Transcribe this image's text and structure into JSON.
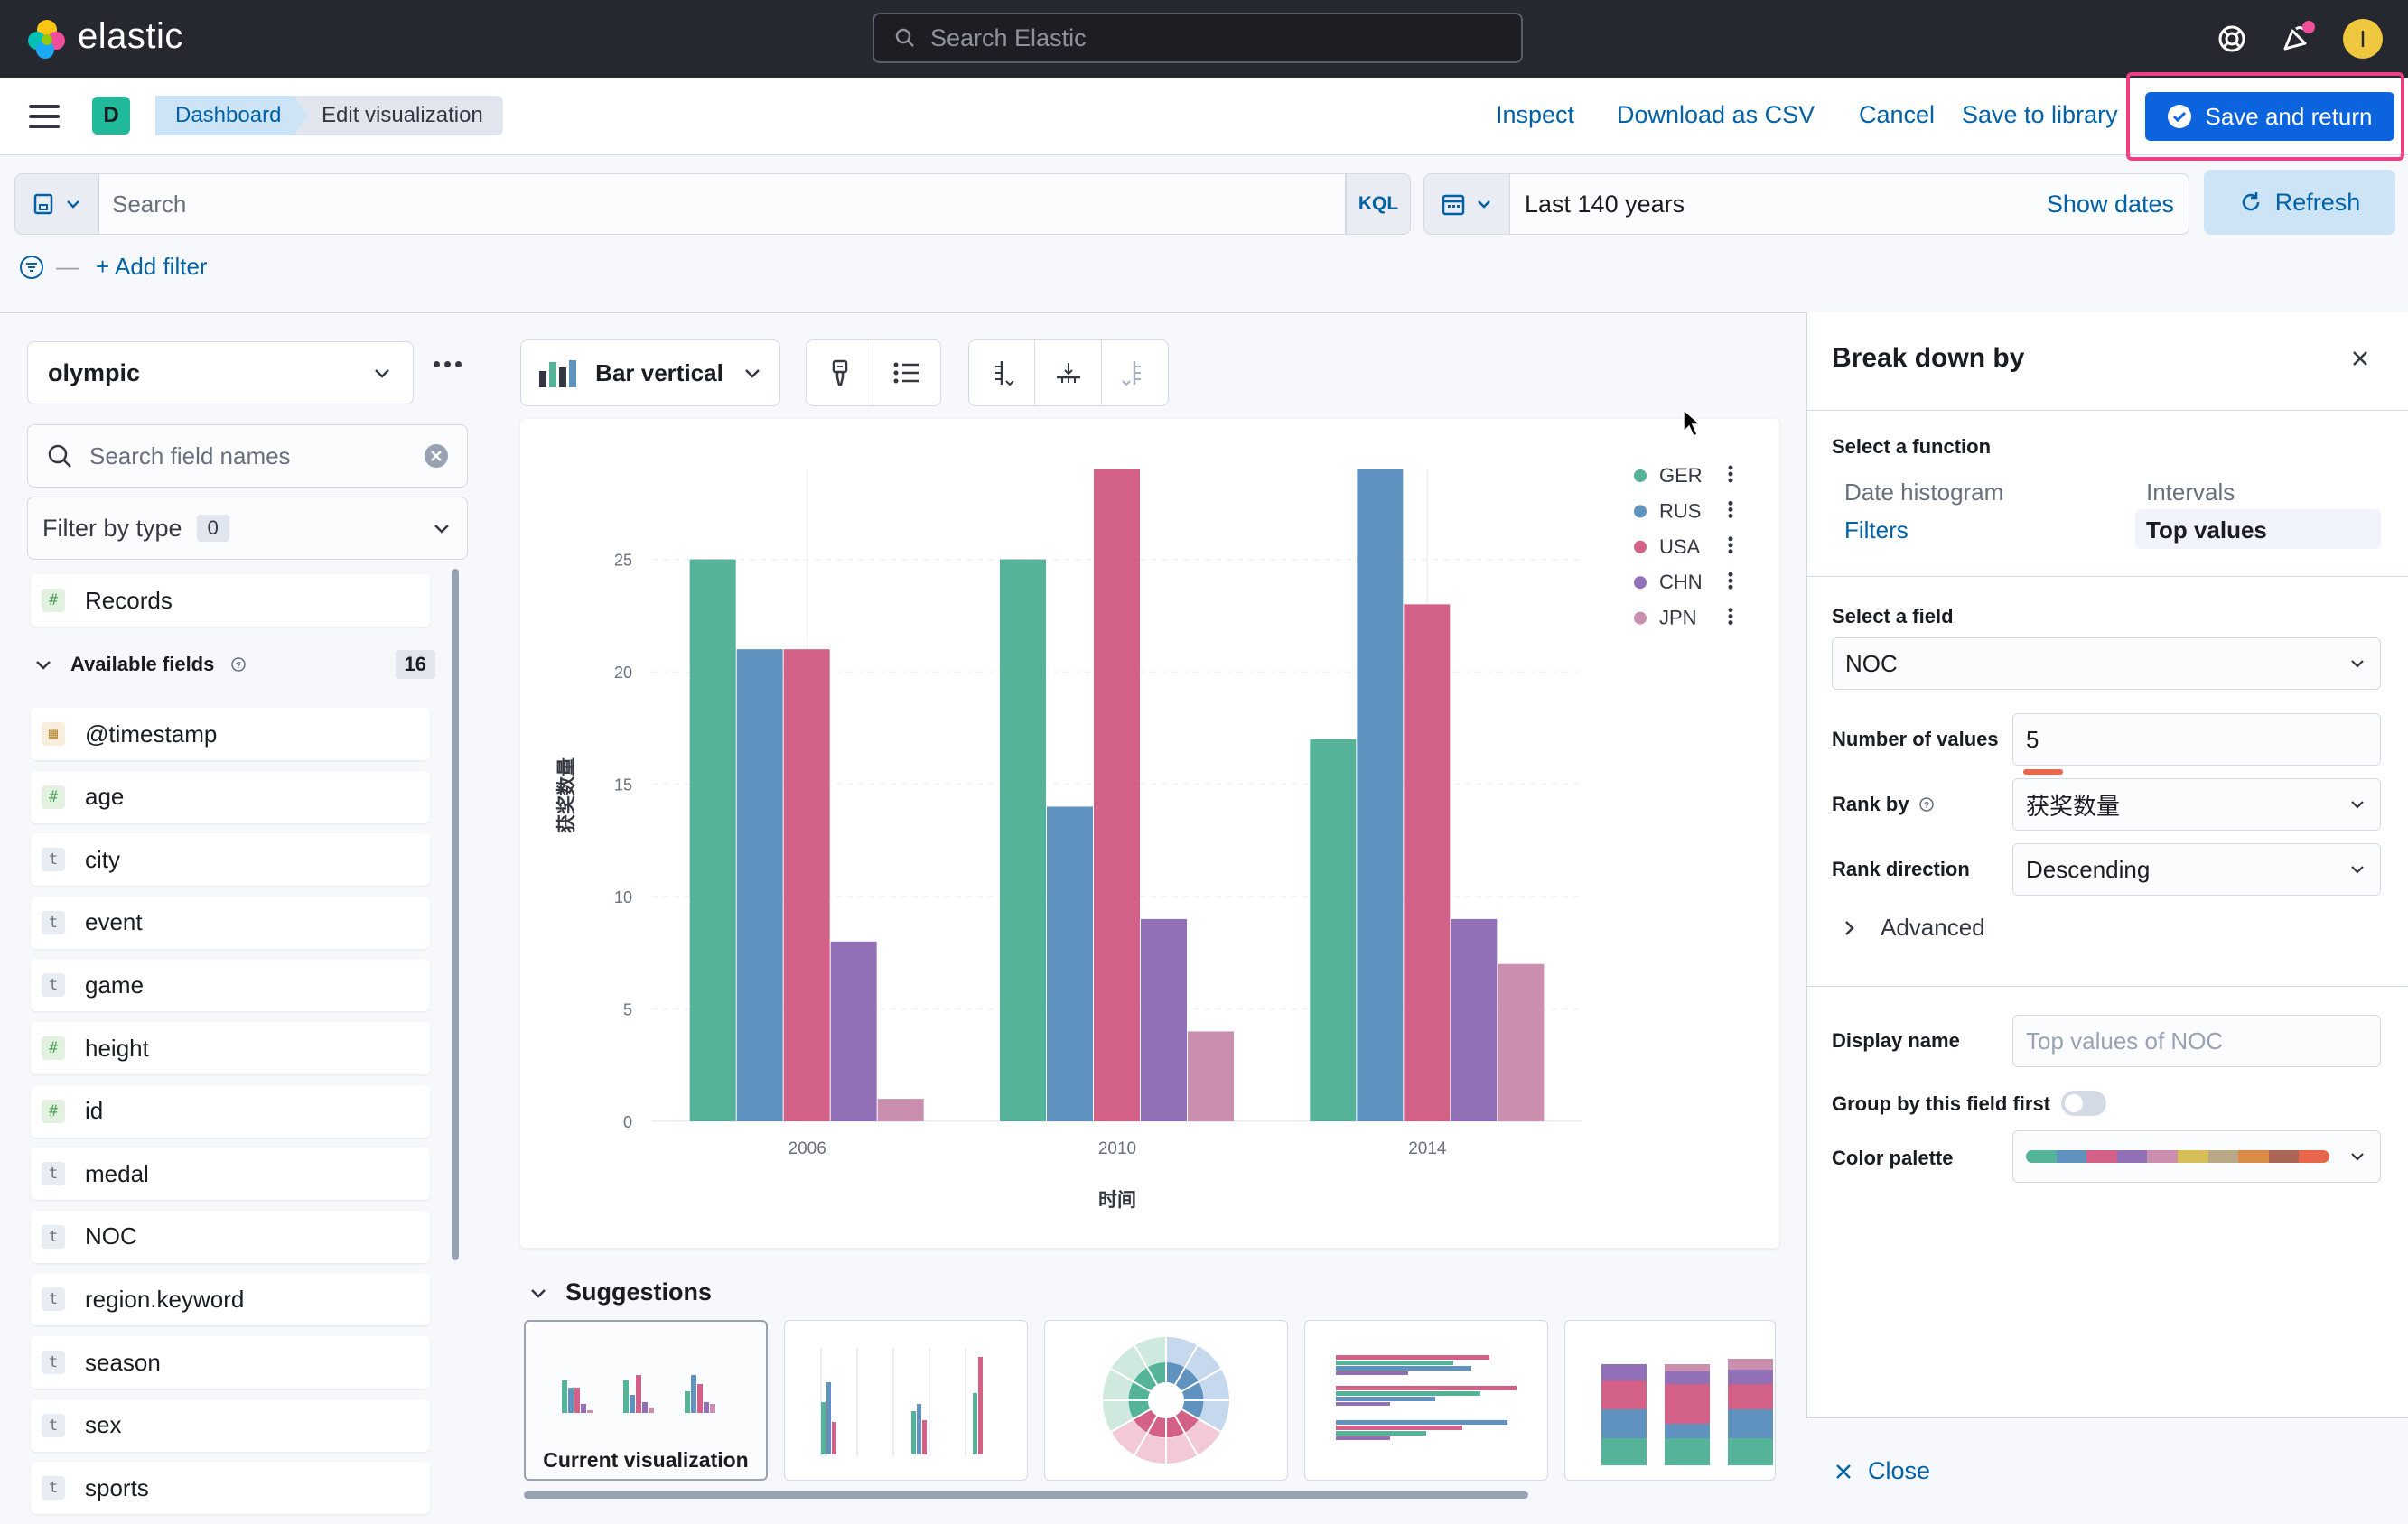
{
  "topbar": {
    "logo_text": "elastic",
    "search_placeholder": "Search Elastic",
    "avatar_initial": "I"
  },
  "header": {
    "space_initial": "D",
    "breadcrumbs": [
      "Dashboard",
      "Edit visualization"
    ],
    "actions": [
      "Inspect",
      "Download as CSV",
      "Cancel",
      "Save to library"
    ],
    "save_return": "Save and return"
  },
  "query": {
    "placeholder": "Search",
    "language": "KQL",
    "time_range": "Last 140 years",
    "show_dates": "Show dates",
    "refresh": "Refresh",
    "add_filter": "+ Add filter"
  },
  "left": {
    "dataview": "olympic",
    "field_search_placeholder": "Search field names",
    "filter_by_type": "Filter by type",
    "filter_count": "0",
    "records": "Records",
    "available_label": "Available fields",
    "available_count": "16",
    "fields": [
      {
        "name": "@timestamp",
        "type": "d"
      },
      {
        "name": "age",
        "type": "#"
      },
      {
        "name": "city",
        "type": "t"
      },
      {
        "name": "event",
        "type": "t"
      },
      {
        "name": "game",
        "type": "t"
      },
      {
        "name": "height",
        "type": "#"
      },
      {
        "name": "id",
        "type": "#"
      },
      {
        "name": "medal",
        "type": "t"
      },
      {
        "name": "NOC",
        "type": "t"
      },
      {
        "name": "region.keyword",
        "type": "t"
      },
      {
        "name": "season",
        "type": "t"
      },
      {
        "name": "sex",
        "type": "t"
      },
      {
        "name": "sports",
        "type": "t"
      }
    ]
  },
  "workspace": {
    "chart_type": "Bar vertical",
    "suggestions_title": "Suggestions",
    "current_viz": "Current visualization"
  },
  "chart_data": {
    "type": "bar",
    "categories": [
      "2006",
      "2010",
      "2014"
    ],
    "xlabel": "时间",
    "ylabel": "获奖数量",
    "yticks": [
      0,
      5,
      10,
      15,
      20,
      25
    ],
    "ylim": [
      0,
      29
    ],
    "legend_position": "top-right",
    "series": [
      {
        "name": "GER",
        "color": "#54b399",
        "values": [
          25,
          25,
          17
        ]
      },
      {
        "name": "RUS",
        "color": "#6092c0",
        "values": [
          21,
          14,
          29
        ]
      },
      {
        "name": "USA",
        "color": "#d36086",
        "values": [
          21,
          29,
          23
        ]
      },
      {
        "name": "CHN",
        "color": "#9170b8",
        "values": [
          8,
          9,
          9
        ]
      },
      {
        "name": "JPN",
        "color": "#ca8eae",
        "values": [
          1,
          4,
          7
        ]
      }
    ]
  },
  "panel": {
    "title": "Break down by",
    "select_function": "Select a function",
    "functions": [
      "Date histogram",
      "Intervals",
      "Filters",
      "Top values"
    ],
    "select_field": "Select a field",
    "field_value": "NOC",
    "num_values_label": "Number of values",
    "num_values": "5",
    "rank_by_label": "Rank by",
    "rank_by": "获奖数量",
    "rank_dir_label": "Rank direction",
    "rank_dir": "Descending",
    "advanced": "Advanced",
    "display_name_label": "Display name",
    "display_name_placeholder": "Top values of NOC",
    "group_first": "Group by this field first",
    "color_palette": "Color palette",
    "close": "Close",
    "palette_colors": [
      "#54b399",
      "#6092c0",
      "#d36086",
      "#9170b8",
      "#ca8eae",
      "#d6bf57",
      "#b9a888",
      "#da8b45",
      "#aa6556",
      "#e7664c"
    ]
  }
}
